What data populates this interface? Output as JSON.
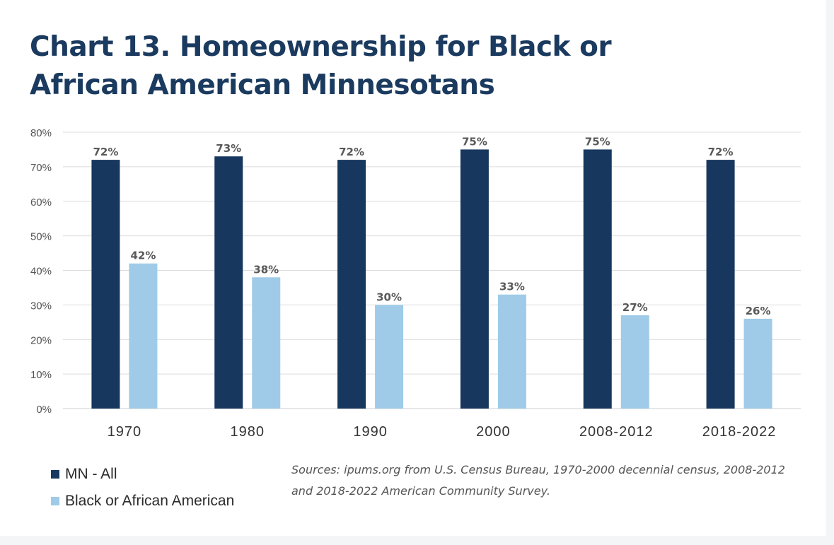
{
  "title": "Chart 13. Homeownership for Black or African American Minnesotans",
  "source": "Sources: ipums.org from U.S. Census Bureau, 1970-2000 decennial census, 2008-2012 and 2018-2022 American Community Survey.",
  "colors": {
    "mn_all": "#17375e",
    "black": "#9fcbe8",
    "grid": "#dcdcdc",
    "tick": "#555555",
    "label": "#595959"
  },
  "chart_data": {
    "type": "bar",
    "title": "Chart 13. Homeownership for Black or African American Minnesotans",
    "categories": [
      "1970",
      "1980",
      "1990",
      "2000",
      "2008-2012",
      "2018-2022"
    ],
    "series": [
      {
        "name": "MN - All",
        "values": [
          72,
          73,
          72,
          75,
          75,
          72
        ],
        "labels": [
          "72%",
          "73%",
          "72%",
          "75%",
          "75%",
          "72%"
        ],
        "color": "#17375e"
      },
      {
        "name": "Black or African American",
        "values": [
          42,
          38,
          30,
          33,
          27,
          26
        ],
        "labels": [
          "42%",
          "38%",
          "30%",
          "33%",
          "27%",
          "26%"
        ],
        "color": "#9fcbe8"
      }
    ],
    "ylim": [
      0,
      80
    ],
    "yticks": [
      "0%",
      "10%",
      "20%",
      "30%",
      "40%",
      "50%",
      "60%",
      "70%",
      "80%"
    ],
    "ytick_values": [
      0,
      10,
      20,
      30,
      40,
      50,
      60,
      70,
      80
    ],
    "xlabel": "",
    "ylabel": "",
    "grid": true,
    "legend": "bottom-left"
  }
}
